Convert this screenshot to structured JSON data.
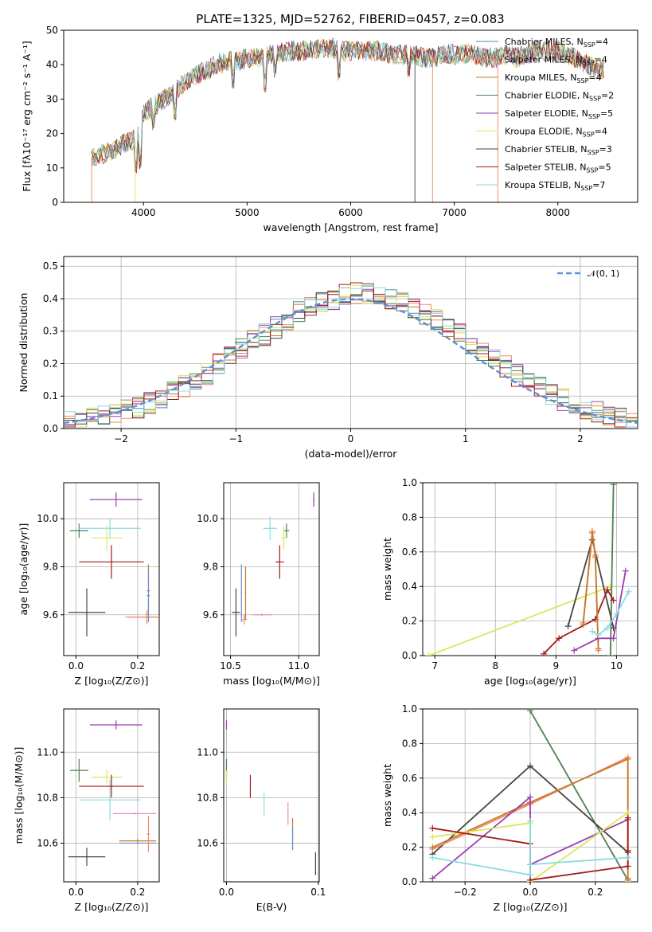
{
  "figure_title": "PLATE=1325, MJD=52762, FIBERID=0457, z=0.083",
  "colors": {
    "chabrier_miles": "#4a90a4",
    "salpeter_miles": "#ef8a62",
    "kroupa_miles": "#c8792a",
    "chabrier_elodie": "#4f7f52",
    "salpeter_elodie": "#9a3fb0",
    "kroupa_elodie": "#d8e85a",
    "chabrier_stelib": "#444444",
    "salpeter_stelib": "#a81818",
    "kroupa_stelib": "#88dce0",
    "gaussian": "#5b8fd6",
    "pink": "#ea8fbf",
    "blue_extra": "#6a8fd0"
  },
  "chart_data": [
    {
      "id": "spectrum",
      "type": "line",
      "title": "PLATE=1325, MJD=52762, FIBERID=0457, z=0.083",
      "xlabel": "wavelength [Angstrom, rest frame]",
      "ylabel": "Flux [fλ10⁻¹⁷ erg cm⁻² s⁻¹ A⁻¹]",
      "xlim": [
        3230,
        8770
      ],
      "ylim": [
        0,
        50
      ],
      "xticks": [
        4000,
        5000,
        6000,
        7000,
        8000
      ],
      "xtick_labels": [
        "4000",
        "5000",
        "6000",
        "7000",
        "8000"
      ],
      "yticks": [
        0,
        10,
        20,
        30,
        40,
        50
      ],
      "ytick_labels": [
        "0",
        "10",
        "20",
        "30",
        "40",
        "50"
      ],
      "grid": false,
      "legend_position": "right",
      "continuum": {
        "x": [
          3500,
          3600,
          3700,
          3800,
          3900,
          3950,
          4000,
          4100,
          4200,
          4300,
          4400,
          4500,
          4600,
          4700,
          4800,
          4900,
          5000,
          5100,
          5200,
          5300,
          5400,
          5500,
          5600,
          5700,
          5800,
          5900,
          6000,
          6100,
          6200,
          6300,
          6400,
          6500,
          6600,
          6700,
          6800,
          6900,
          7000,
          7100,
          7200,
          7300,
          7400,
          7500,
          7600,
          7700,
          7800,
          7900,
          8000,
          8100,
          8200,
          8300,
          8400,
          8500
        ],
        "y": [
          13,
          14,
          15,
          17,
          18,
          20,
          26,
          28,
          30,
          32,
          35,
          37,
          38,
          40,
          41,
          41,
          42,
          42,
          43,
          43,
          44,
          44,
          44,
          45,
          45,
          44,
          44,
          44,
          44,
          44,
          43,
          43,
          43,
          42,
          42,
          43,
          43,
          43,
          43,
          42,
          42,
          43,
          42,
          43,
          44,
          44,
          44,
          43,
          41,
          40,
          39,
          37
        ]
      },
      "series": [
        {
          "name": "Chabrier MILES, N",
          "sub": "SSP",
          "count": "=4",
          "color_key": "chabrier_miles"
        },
        {
          "name": "Salpeter MILES, N",
          "sub": "SSP",
          "count": "=4",
          "color_key": "salpeter_miles"
        },
        {
          "name": "Kroupa MILES, N",
          "sub": "SSP",
          "count": "=4",
          "color_key": "kroupa_miles"
        },
        {
          "name": "Chabrier ELODIE, N",
          "sub": "SSP",
          "count": "=2",
          "color_key": "chabrier_elodie"
        },
        {
          "name": "Salpeter ELODIE, N",
          "sub": "SSP",
          "count": "=5",
          "color_key": "salpeter_elodie"
        },
        {
          "name": "Kroupa ELODIE, N",
          "sub": "SSP",
          "count": "=4",
          "color_key": "kroupa_elodie"
        },
        {
          "name": "Chabrier STELIB, N",
          "sub": "SSP",
          "count": "=3",
          "color_key": "chabrier_stelib"
        },
        {
          "name": "Salpeter STELIB, N",
          "sub": "SSP",
          "count": "=5",
          "color_key": "salpeter_stelib"
        },
        {
          "name": "Kroupa STELIB, N",
          "sub": "SSP",
          "count": "=7",
          "color_key": "kroupa_stelib"
        }
      ]
    },
    {
      "id": "residuals",
      "type": "histogram",
      "xlabel": "(data-model)/error",
      "ylabel": "Normed distribution",
      "xlim": [
        -2.5,
        2.5
      ],
      "ylim": [
        0,
        0.53
      ],
      "xticks": [
        -2,
        -1,
        0,
        1,
        2
      ],
      "xtick_labels": [
        "−2",
        "−1",
        "0",
        "1",
        "2"
      ],
      "yticks": [
        0,
        0.1,
        0.2,
        0.3,
        0.4,
        0.5
      ],
      "ytick_labels": [
        "0.0",
        "0.1",
        "0.2",
        "0.3",
        "0.4",
        "0.5"
      ],
      "grid": true,
      "bin_width": 0.1,
      "bin_start": -2.5,
      "base": [
        0.02,
        0.025,
        0.03,
        0.035,
        0.045,
        0.055,
        0.065,
        0.08,
        0.095,
        0.11,
        0.13,
        0.15,
        0.17,
        0.2,
        0.22,
        0.245,
        0.27,
        0.29,
        0.31,
        0.335,
        0.36,
        0.375,
        0.39,
        0.4,
        0.41,
        0.42,
        0.415,
        0.41,
        0.4,
        0.39,
        0.375,
        0.355,
        0.335,
        0.31,
        0.29,
        0.265,
        0.24,
        0.215,
        0.19,
        0.165,
        0.145,
        0.125,
        0.105,
        0.09,
        0.075,
        0.06,
        0.05,
        0.04,
        0.03,
        0.02
      ],
      "gaussian_legend": "𝒩(0, 1)",
      "legend_position": "top-right"
    },
    {
      "id": "age_vs_Z",
      "type": "errorbar",
      "xlabel": "Z [log₁₀(Z/Z⊙)]",
      "ylabel": "age  [log₁₀(age/yr)]",
      "xlim": [
        -0.04,
        0.27
      ],
      "ylim": [
        9.43,
        10.15
      ],
      "xticks": [
        0.0,
        0.2
      ],
      "xtick_labels": [
        "0.0",
        "0.2"
      ],
      "yticks": [
        9.6,
        9.8,
        10.0
      ],
      "ytick_labels": [
        "9.6",
        "9.8",
        "10.0"
      ],
      "grid": true,
      "points": [
        {
          "x": 0.13,
          "y": 10.08,
          "xerr": 0.085,
          "yerr": 0.03,
          "color_key": "salpeter_elodie"
        },
        {
          "x": 0.01,
          "y": 9.95,
          "xerr": 0.03,
          "yerr": 0.03,
          "color_key": "chabrier_elodie"
        },
        {
          "x": 0.11,
          "y": 9.96,
          "xerr": 0.1,
          "yerr": 0.04,
          "color_key": "kroupa_stelib"
        },
        {
          "x": 0.1,
          "y": 9.92,
          "xerr": 0.05,
          "yerr": 0.05,
          "color_key": "kroupa_elodie"
        },
        {
          "x": 0.115,
          "y": 9.82,
          "xerr": 0.105,
          "yerr": 0.07,
          "color_key": "salpeter_stelib"
        },
        {
          "x": 0.035,
          "y": 9.61,
          "xerr": 0.06,
          "yerr": 0.1,
          "color_key": "chabrier_stelib"
        },
        {
          "x": 0.23,
          "y": 9.59,
          "xerr": 0.07,
          "yerr": 0.02,
          "color_key": "pink"
        },
        {
          "x": 0.23,
          "y": 9.59,
          "xerr": 0.06,
          "yerr": 0.03,
          "color_key": "salpeter_miles"
        },
        {
          "x": 0.235,
          "y": 9.7,
          "xerr": 0.005,
          "yerr": 0.11,
          "color_key": "kroupa_miles"
        },
        {
          "x": 0.235,
          "y": 9.68,
          "xerr": 0.005,
          "yerr": 0.11,
          "color_key": "blue_extra"
        }
      ]
    },
    {
      "id": "age_vs_mass",
      "type": "errorbar",
      "xlabel": "mass [log₁₀(M/M⊙)]",
      "ylabel": "",
      "xlim": [
        10.45,
        11.15
      ],
      "ylim": [
        9.43,
        10.15
      ],
      "xticks": [
        10.5,
        11.0
      ],
      "xtick_labels": [
        "10.5",
        "11.0"
      ],
      "yticks": [
        9.6,
        9.8,
        10.0
      ],
      "ytick_labels": [
        "9.6",
        "9.8",
        "10.0"
      ],
      "grid": true,
      "points": [
        {
          "x": 11.11,
          "y": 10.08,
          "xerr": 0.005,
          "yerr": 0.03,
          "color_key": "salpeter_elodie"
        },
        {
          "x": 10.91,
          "y": 9.95,
          "xerr": 0.02,
          "yerr": 0.03,
          "color_key": "chabrier_elodie"
        },
        {
          "x": 10.79,
          "y": 9.96,
          "xerr": 0.05,
          "yerr": 0.05,
          "color_key": "kroupa_stelib"
        },
        {
          "x": 10.89,
          "y": 9.92,
          "xerr": 0.02,
          "yerr": 0.05,
          "color_key": "kroupa_elodie"
        },
        {
          "x": 10.86,
          "y": 9.82,
          "xerr": 0.03,
          "yerr": 0.07,
          "color_key": "salpeter_stelib"
        },
        {
          "x": 10.54,
          "y": 9.61,
          "xerr": 0.03,
          "yerr": 0.1,
          "color_key": "chabrier_stelib"
        },
        {
          "x": 10.73,
          "y": 9.6,
          "xerr": 0.07,
          "yerr": 0.005,
          "color_key": "pink"
        },
        {
          "x": 10.6,
          "y": 9.58,
          "xerr": 0.02,
          "yerr": 0.02,
          "color_key": "salpeter_miles"
        },
        {
          "x": 10.61,
          "y": 9.69,
          "xerr": 0.005,
          "yerr": 0.11,
          "color_key": "kroupa_miles"
        },
        {
          "x": 10.58,
          "y": 9.69,
          "xerr": 0.005,
          "yerr": 0.12,
          "color_key": "blue_extra"
        }
      ]
    },
    {
      "id": "weight_vs_age",
      "type": "line",
      "xlabel": "age  [log₁₀(age/yr)]",
      "ylabel": "mass weight",
      "xlim": [
        6.8,
        10.35
      ],
      "ylim": [
        0,
        1
      ],
      "xticks": [
        7,
        8,
        9,
        10
      ],
      "xtick_labels": [
        "7",
        "8",
        "9",
        "10"
      ],
      "yticks": [
        0,
        0.2,
        0.4,
        0.6,
        0.8,
        1.0
      ],
      "ytick_labels": [
        "0.0",
        "0.2",
        "0.4",
        "0.6",
        "0.8",
        "1.0"
      ],
      "grid": true,
      "lines": [
        {
          "color_key": "kroupa_elodie",
          "x": [
            6.9,
            9.9
          ],
          "y": [
            0.0,
            0.4
          ]
        },
        {
          "color_key": "chabrier_elodie",
          "x": [
            9.9,
            9.95
          ],
          "y": [
            0.0,
            0.99
          ]
        },
        {
          "color_key": "chabrier_stelib",
          "x": [
            9.2,
            9.6,
            9.95
          ],
          "y": [
            0.17,
            0.67,
            0.16
          ]
        },
        {
          "color_key": "salpeter_stelib",
          "x": [
            8.8,
            9.05,
            9.65,
            9.85,
            9.95
          ],
          "y": [
            0.01,
            0.1,
            0.21,
            0.38,
            0.32
          ]
        },
        {
          "color_key": "salpeter_miles",
          "x": [
            9.45,
            9.6,
            9.65,
            9.7
          ],
          "y": [
            0.19,
            0.72,
            0.58,
            0.03
          ]
        },
        {
          "color_key": "kroupa_miles",
          "x": [
            9.45,
            9.6,
            9.65,
            9.7
          ],
          "y": [
            0.18,
            0.71,
            0.57,
            0.04
          ]
        },
        {
          "color_key": "salpeter_elodie",
          "x": [
            9.3,
            9.7,
            9.95,
            10.15
          ],
          "y": [
            0.03,
            0.1,
            0.1,
            0.49
          ]
        },
        {
          "color_key": "kroupa_stelib",
          "x": [
            9.6,
            9.7,
            9.85,
            10.0,
            10.2
          ],
          "y": [
            0.14,
            0.12,
            0.16,
            0.24,
            0.37
          ]
        }
      ]
    },
    {
      "id": "mass_vs_Z",
      "type": "errorbar",
      "xlabel": "Z [log₁₀(Z/Z⊙)]",
      "ylabel": "mass [log₁₀(M/M⊙)]",
      "xlim": [
        -0.04,
        0.27
      ],
      "ylim": [
        10.43,
        11.19
      ],
      "xticks": [
        0.0,
        0.2
      ],
      "xtick_labels": [
        "0.0",
        "0.2"
      ],
      "yticks": [
        10.6,
        10.8,
        11.0
      ],
      "ytick_labels": [
        "10.6",
        "10.8",
        "11.0"
      ],
      "grid": true,
      "points": [
        {
          "x": 0.13,
          "y": 11.12,
          "xerr": 0.085,
          "yerr": 0.02,
          "color_key": "salpeter_elodie"
        },
        {
          "x": 0.01,
          "y": 10.92,
          "xerr": 0.03,
          "yerr": 0.05,
          "color_key": "chabrier_elodie"
        },
        {
          "x": 0.1,
          "y": 10.89,
          "xerr": 0.05,
          "yerr": 0.03,
          "color_key": "kroupa_elodie"
        },
        {
          "x": 0.11,
          "y": 10.79,
          "xerr": 0.1,
          "yerr": 0.09,
          "color_key": "kroupa_stelib"
        },
        {
          "x": 0.115,
          "y": 10.85,
          "xerr": 0.105,
          "yerr": 0.05,
          "color_key": "salpeter_stelib"
        },
        {
          "x": 0.035,
          "y": 10.54,
          "xerr": 0.06,
          "yerr": 0.04,
          "color_key": "chabrier_stelib"
        },
        {
          "x": 0.19,
          "y": 10.73,
          "xerr": 0.07,
          "yerr": 0.005,
          "color_key": "pink"
        },
        {
          "x": 0.2,
          "y": 10.61,
          "xerr": 0.06,
          "yerr": 0.01,
          "color_key": "kroupa_miles"
        },
        {
          "x": 0.2,
          "y": 10.6,
          "xerr": 0.06,
          "yerr": 0.005,
          "color_key": "blue_extra"
        },
        {
          "x": 0.235,
          "y": 10.64,
          "xerr": 0.005,
          "yerr": 0.08,
          "color_key": "salpeter_miles"
        }
      ]
    },
    {
      "id": "mass_vs_ebv",
      "type": "errorbar",
      "xlabel": "E(B-V)",
      "ylabel": "",
      "xlim": [
        -0.003,
        0.101
      ],
      "ylim": [
        10.43,
        11.19
      ],
      "xticks": [
        0.0,
        0.1
      ],
      "xtick_labels": [
        "0.0",
        "0.1"
      ],
      "yticks": [
        10.6,
        10.8,
        11.0
      ],
      "ytick_labels": [
        "10.6",
        "10.8",
        "11.0"
      ],
      "grid": true,
      "points": [
        {
          "x": 0.0,
          "y": 11.12,
          "xerr": 0.0005,
          "yerr": 0.02,
          "color_key": "salpeter_elodie"
        },
        {
          "x": 0.0,
          "y": 10.92,
          "xerr": 0.0005,
          "yerr": 0.05,
          "color_key": "chabrier_elodie"
        },
        {
          "x": 0.0,
          "y": 10.89,
          "xerr": 0.0005,
          "yerr": 0.03,
          "color_key": "kroupa_elodie"
        },
        {
          "x": 0.026,
          "y": 10.85,
          "xerr": 0.0005,
          "yerr": 0.05,
          "color_key": "salpeter_stelib"
        },
        {
          "x": 0.041,
          "y": 10.77,
          "xerr": 0.0005,
          "yerr": 0.05,
          "color_key": "kroupa_stelib"
        },
        {
          "x": 0.067,
          "y": 10.73,
          "xerr": 0.0005,
          "yerr": 0.05,
          "color_key": "pink"
        },
        {
          "x": 0.072,
          "y": 10.64,
          "xerr": 0.0005,
          "yerr": 0.07,
          "color_key": "kroupa_miles"
        },
        {
          "x": 0.072,
          "y": 10.62,
          "xerr": 0.0005,
          "yerr": 0.05,
          "color_key": "blue_extra"
        },
        {
          "x": 0.097,
          "y": 10.51,
          "xerr": 0.0005,
          "yerr": 0.05,
          "color_key": "chabrier_stelib"
        }
      ]
    },
    {
      "id": "weight_vs_Z",
      "type": "line",
      "xlabel": "Z [log₁₀(Z/Z⊙)]",
      "ylabel": "mass weight",
      "xlim": [
        -0.33,
        0.33
      ],
      "ylim": [
        0,
        1
      ],
      "xticks": [
        -0.2,
        0.0,
        0.2
      ],
      "xtick_labels": [
        "−0.2",
        "0.0",
        "0.2"
      ],
      "yticks": [
        0,
        0.2,
        0.4,
        0.6,
        0.8,
        1.0
      ],
      "ytick_labels": [
        "0.0",
        "0.2",
        "0.4",
        "0.6",
        "0.8",
        "1.0"
      ],
      "grid": true,
      "lines": [
        {
          "color_key": "chabrier_elodie",
          "x": [
            0.0,
            0.3
          ],
          "y": [
            0.99,
            0.01
          ]
        },
        {
          "color_key": "chabrier_stelib",
          "x": [
            -0.3,
            0.0,
            0.3
          ],
          "y": [
            0.16,
            0.67,
            0.17
          ]
        },
        {
          "color_key": "salpeter_miles",
          "x": [
            -0.3,
            0.0,
            0.3,
            0.3
          ],
          "y": [
            0.19,
            0.45,
            0.72,
            0.0
          ]
        },
        {
          "color_key": "kroupa_miles",
          "x": [
            -0.3,
            0.0,
            0.3,
            0.3
          ],
          "y": [
            0.2,
            0.46,
            0.71,
            0.02
          ]
        },
        {
          "color_key": "salpeter_elodie",
          "x": [
            -0.3,
            0.0,
            0.0,
            0.3
          ],
          "y": [
            0.02,
            0.49,
            0.1,
            0.36
          ]
        },
        {
          "color_key": "kroupa_elodie",
          "x": [
            -0.3,
            0.0,
            0.0,
            0.3
          ],
          "y": [
            0.26,
            0.34,
            0.0,
            0.4
          ]
        },
        {
          "color_key": "salpeter_stelib",
          "x": [
            -0.3,
            0.0,
            0.0,
            0.3,
            0.3,
            0.3
          ],
          "y": [
            0.31,
            0.22,
            0.01,
            0.09,
            0.18,
            0.37
          ]
        },
        {
          "color_key": "kroupa_stelib",
          "x": [
            -0.3,
            0.0,
            0.0,
            0.0,
            0.3
          ],
          "y": [
            0.14,
            0.04,
            0.35,
            0.1,
            0.14
          ]
        }
      ]
    }
  ]
}
